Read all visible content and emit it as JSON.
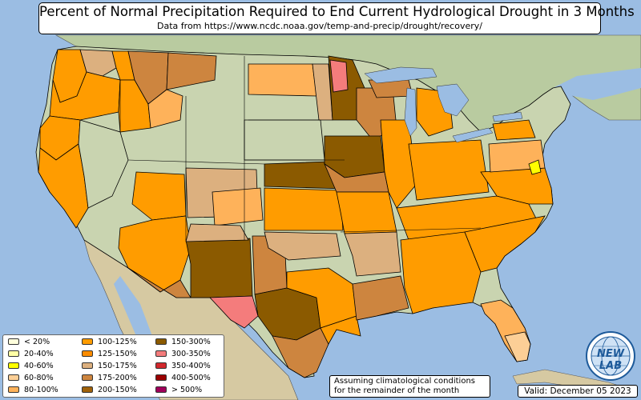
{
  "title": "Percent of Normal Precipitation Required to End Current Hydrological Drought in 3 Months",
  "subtitle": "Data from https://www.ncdc.noaa.gov/temp-and-precip/drought/recovery/",
  "legend": [
    {
      "label": "< 20%",
      "color": "#ffffdc"
    },
    {
      "label": "20-40%",
      "color": "#ffffa6"
    },
    {
      "label": "40-60%",
      "color": "#ffff00"
    },
    {
      "label": "60-80%",
      "color": "#fccf96"
    },
    {
      "label": "80-100%",
      "color": "#feb25a"
    },
    {
      "label": "100-125%",
      "color": "#ff9c00"
    },
    {
      "label": "125-150%",
      "color": "#fb8c00"
    },
    {
      "label": "150-175%",
      "color": "#dcb07f"
    },
    {
      "label": "175-200%",
      "color": "#cd853f"
    },
    {
      "label": "200-150%",
      "color": "#a0620a"
    },
    {
      "label": "150-300%",
      "color": "#8b5a00"
    },
    {
      "label": "300-350%",
      "color": "#f47c7c"
    },
    {
      "label": "350-400%",
      "color": "#d2282d"
    },
    {
      "label": "400-500%",
      "color": "#9a0000"
    },
    {
      "label": "> 500%",
      "color": "#a0005a"
    }
  ],
  "note": {
    "line1": "Assuming climatological conditions",
    "line2": "for the remainder of the month"
  },
  "valid": "Valid: December 05 2023",
  "logo": {
    "text": "NEW LAB",
    "icon": "globe-icon"
  },
  "colors": {
    "water": "#9bbde3",
    "land": "#c9d4b0",
    "land_dry": "#d9cda4",
    "canada": "#b9cba0",
    "mexico": "#d6c9a2",
    "border": "#000000"
  }
}
